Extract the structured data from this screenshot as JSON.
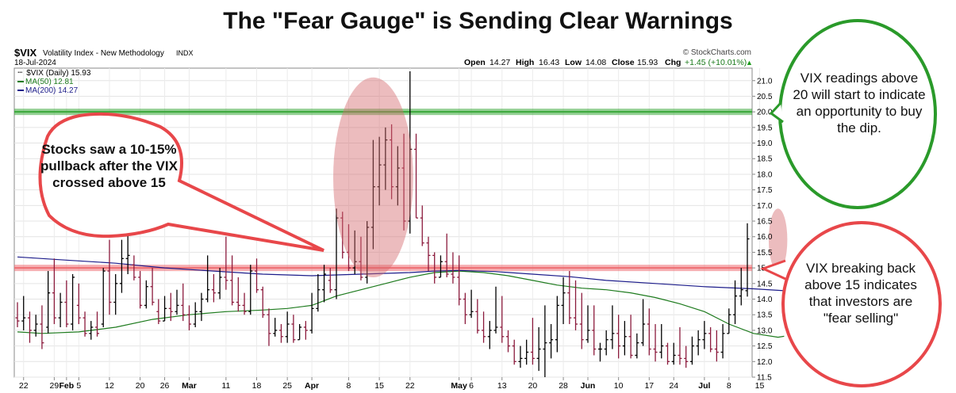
{
  "title": "The \"Fear Gauge\" is Sending Clear Warnings",
  "header": {
    "symbol": "$VIX",
    "name": "Volatility Index - New Methodology",
    "exchange": "INDX",
    "date": "18-Jul-2024",
    "watermark": "© StockCharts.com",
    "ohlc": {
      "open_label": "Open",
      "open": "14.27",
      "high_label": "High",
      "high": "16.43",
      "low_label": "Low",
      "low": "14.08",
      "close_label": "Close",
      "close": "15.93",
      "chg_label": "Chg",
      "chg": "+1.45 (+10.01%)"
    },
    "legend": {
      "price": "$VIX (Daily) 15.93",
      "ma50": "MA(50) 12.81",
      "ma200": "MA(200) 14.27"
    }
  },
  "annotations": {
    "left_bubble": "Stocks saw a 10-15% pullback after the VIX crossed above 15",
    "green_bubble": "VIX readings above 20 will start to indicate an opportunity to buy the dip.",
    "red_bubble": "VIX breaking back above 15 indicates that investors are \"fear selling\""
  },
  "colors": {
    "up_bar": "#000000",
    "down_bar": "#8b1a3c",
    "ma50": "#1e7b1e",
    "ma200": "#1c1c8a",
    "green_level": "#3aa83a",
    "red_level": "#ee6e72",
    "green_bubble_border": "#2a9a2a",
    "red_bubble_border": "#e8474a",
    "highlight_ellipse": "#d46a6e"
  },
  "chart_data": {
    "type": "ohlc",
    "title": "$VIX Volatility Index - New Methodology",
    "ylabel": "",
    "ylim": [
      11.5,
      21.4
    ],
    "yticks": [
      "11.5",
      "12.0",
      "12.5",
      "13.0",
      "13.5",
      "14.0",
      "14.5",
      "15.0",
      "15.5",
      "16.0",
      "16.5",
      "17.0",
      "17.5",
      "18.0",
      "18.5",
      "19.0",
      "19.5",
      "20.0",
      "20.5",
      "21.0"
    ],
    "x_ticks": [
      {
        "label": "22",
        "bold": false,
        "i": 1
      },
      {
        "label": "29",
        "bold": false,
        "i": 6
      },
      {
        "label": "Feb",
        "bold": true,
        "i": 8
      },
      {
        "label": "5",
        "bold": false,
        "i": 10
      },
      {
        "label": "12",
        "bold": false,
        "i": 15
      },
      {
        "label": "20",
        "bold": false,
        "i": 20
      },
      {
        "label": "26",
        "bold": false,
        "i": 24
      },
      {
        "label": "Mar",
        "bold": true,
        "i": 28
      },
      {
        "label": "11",
        "bold": false,
        "i": 34
      },
      {
        "label": "18",
        "bold": false,
        "i": 39
      },
      {
        "label": "25",
        "bold": false,
        "i": 44
      },
      {
        "label": "Apr",
        "bold": true,
        "i": 48
      },
      {
        "label": "8",
        "bold": false,
        "i": 54
      },
      {
        "label": "15",
        "bold": false,
        "i": 59
      },
      {
        "label": "22",
        "bold": false,
        "i": 64
      },
      {
        "label": "May",
        "bold": true,
        "i": 72
      },
      {
        "label": "6",
        "bold": false,
        "i": 74
      },
      {
        "label": "13",
        "bold": false,
        "i": 79
      },
      {
        "label": "20",
        "bold": false,
        "i": 84
      },
      {
        "label": "28",
        "bold": false,
        "i": 89
      },
      {
        "label": "Jun",
        "bold": true,
        "i": 93
      },
      {
        "label": "10",
        "bold": false,
        "i": 98
      },
      {
        "label": "17",
        "bold": false,
        "i": 103
      },
      {
        "label": "24",
        "bold": false,
        "i": 107
      },
      {
        "label": "Jul",
        "bold": true,
        "i": 112
      },
      {
        "label": "8",
        "bold": false,
        "i": 116
      },
      {
        "label": "15",
        "bold": false,
        "i": 121
      }
    ],
    "horizontal_levels": [
      {
        "value": 20.0,
        "color": "green"
      },
      {
        "value": 15.0,
        "color": "red"
      }
    ],
    "highlight_zones": [
      {
        "x_from_index": 52,
        "x_to_index": 64,
        "y_from": 14.8,
        "y_to": 21.0
      },
      {
        "x_from_index": 123,
        "x_to_index": 125,
        "y_from": 15.0,
        "y_to": 16.8
      }
    ],
    "series": [
      {
        "name": "$VIX (Daily)",
        "type": "ohlc",
        "bars": [
          [
            13.4,
            13.9,
            13.1,
            13.3
          ],
          [
            13.3,
            14.1,
            13.0,
            13.4
          ],
          [
            13.4,
            13.6,
            12.6,
            13.0
          ],
          [
            13.0,
            13.5,
            12.8,
            13.2
          ],
          [
            13.2,
            13.8,
            12.4,
            12.6
          ],
          [
            13.1,
            14.9,
            12.9,
            14.2
          ],
          [
            14.2,
            15.3,
            13.2,
            13.4
          ],
          [
            13.4,
            14.2,
            13.1,
            13.9
          ],
          [
            13.9,
            14.6,
            13.1,
            13.2
          ],
          [
            13.2,
            14.8,
            13.0,
            14.7
          ],
          [
            13.8,
            14.5,
            13.2,
            13.4
          ],
          [
            13.4,
            13.6,
            12.8,
            12.9
          ],
          [
            12.9,
            13.3,
            12.7,
            13.1
          ],
          [
            13.1,
            13.6,
            12.8,
            12.9
          ],
          [
            13.2,
            15.0,
            13.1,
            14.9
          ],
          [
            14.9,
            15.9,
            13.5,
            13.9
          ],
          [
            13.9,
            14.8,
            13.5,
            14.5
          ],
          [
            14.5,
            15.9,
            14.2,
            15.3
          ],
          [
            15.3,
            16.3,
            14.8,
            15.4
          ],
          [
            15.1,
            15.4,
            14.6,
            14.7
          ],
          [
            14.7,
            14.9,
            13.7,
            13.8
          ],
          [
            13.8,
            14.6,
            13.7,
            14.4
          ],
          [
            14.4,
            15.0,
            13.8,
            13.9
          ],
          [
            13.6,
            14.0,
            13.2,
            13.3
          ],
          [
            13.3,
            14.1,
            13.3,
            13.7
          ],
          [
            13.7,
            14.2,
            13.3,
            13.6
          ],
          [
            13.6,
            14.3,
            13.5,
            13.8
          ],
          [
            13.8,
            14.5,
            13.3,
            13.5
          ],
          [
            13.5,
            13.8,
            13.0,
            13.2
          ],
          [
            13.2,
            13.9,
            13.1,
            13.6
          ],
          [
            13.6,
            14.2,
            13.3,
            14.0
          ],
          [
            14.0,
            15.4,
            13.9,
            14.3
          ],
          [
            14.3,
            14.8,
            13.9,
            14.2
          ],
          [
            14.2,
            15.0,
            14.0,
            14.7
          ],
          [
            14.7,
            16.0,
            14.3,
            14.6
          ],
          [
            14.6,
            15.4,
            13.8,
            13.9
          ],
          [
            13.9,
            14.7,
            13.6,
            13.8
          ],
          [
            13.8,
            14.2,
            13.5,
            13.6
          ],
          [
            13.6,
            15.1,
            13.5,
            14.9
          ],
          [
            14.9,
            15.3,
            14.2,
            14.3
          ],
          [
            14.3,
            14.4,
            13.4,
            13.5
          ],
          [
            13.5,
            13.7,
            12.5,
            12.9
          ],
          [
            12.9,
            13.4,
            12.8,
            13.0
          ],
          [
            13.0,
            13.2,
            12.6,
            12.8
          ],
          [
            12.8,
            13.6,
            12.6,
            13.2
          ],
          [
            13.2,
            13.5,
            12.6,
            12.7
          ],
          [
            12.7,
            13.2,
            12.7,
            13.1
          ],
          [
            13.1,
            13.3,
            12.7,
            13.0
          ],
          [
            13.0,
            14.2,
            12.9,
            13.7
          ],
          [
            13.7,
            14.8,
            13.6,
            14.3
          ],
          [
            14.3,
            15.1,
            13.9,
            14.8
          ],
          [
            14.6,
            15.0,
            14.2,
            14.3
          ],
          [
            14.3,
            16.9,
            14.0,
            16.6
          ],
          [
            16.6,
            16.8,
            15.3,
            15.5
          ],
          [
            15.5,
            16.4,
            14.9,
            15.0
          ],
          [
            15.0,
            16.2,
            14.8,
            15.2
          ],
          [
            15.2,
            16.0,
            14.6,
            14.7
          ],
          [
            14.7,
            16.5,
            14.5,
            16.3
          ],
          [
            16.3,
            19.1,
            15.6,
            17.6
          ],
          [
            17.6,
            19.2,
            17.0,
            18.3
          ],
          [
            18.3,
            19.5,
            17.5,
            19.1
          ],
          [
            19.1,
            19.6,
            17.2,
            17.6
          ],
          [
            17.6,
            18.9,
            17.0,
            18.2
          ],
          [
            18.2,
            19.3,
            16.2,
            16.5
          ],
          [
            16.5,
            21.3,
            16.1,
            18.8
          ],
          [
            18.8,
            19.3,
            16.6,
            16.6
          ],
          [
            16.6,
            17.0,
            15.7,
            15.8
          ],
          [
            15.8,
            16.0,
            14.9,
            15.4
          ],
          [
            15.4,
            15.5,
            14.5,
            14.7
          ],
          [
            14.7,
            15.4,
            14.7,
            15.2
          ],
          [
            15.2,
            16.1,
            14.7,
            14.8
          ],
          [
            14.8,
            15.5,
            14.5,
            14.7
          ],
          [
            14.7,
            15.4,
            13.8,
            14.0
          ],
          [
            14.0,
            14.2,
            13.2,
            13.5
          ],
          [
            13.5,
            14.3,
            13.4,
            13.6
          ],
          [
            13.6,
            14.0,
            12.9,
            13.0
          ],
          [
            13.0,
            13.6,
            12.6,
            12.8
          ],
          [
            12.8,
            13.3,
            12.4,
            13.0
          ],
          [
            13.0,
            14.4,
            12.9,
            13.1
          ],
          [
            13.1,
            14.1,
            12.6,
            12.8
          ],
          [
            12.8,
            13.0,
            12.3,
            12.5
          ],
          [
            12.5,
            12.7,
            11.9,
            12.0
          ],
          [
            12.0,
            12.5,
            11.8,
            12.1
          ],
          [
            12.1,
            12.7,
            11.9,
            12.3
          ],
          [
            12.3,
            13.4,
            11.9,
            12.1
          ],
          [
            12.1,
            13.1,
            11.7,
            12.4
          ],
          [
            12.4,
            13.8,
            11.5,
            12.6
          ],
          [
            12.6,
            13.2,
            12.1,
            12.7
          ],
          [
            12.7,
            14.1,
            12.3,
            13.8
          ],
          [
            13.8,
            14.7,
            13.2,
            14.2
          ],
          [
            14.2,
            14.9,
            13.2,
            13.4
          ],
          [
            13.4,
            14.6,
            13.0,
            13.2
          ],
          [
            13.2,
            14.2,
            12.4,
            12.7
          ],
          [
            12.7,
            13.8,
            12.6,
            13.0
          ],
          [
            13.0,
            13.8,
            12.2,
            12.4
          ],
          [
            12.4,
            12.6,
            12.0,
            12.4
          ],
          [
            12.4,
            13.0,
            12.2,
            12.7
          ],
          [
            12.7,
            13.8,
            12.4,
            12.9
          ],
          [
            12.9,
            13.5,
            12.1,
            12.5
          ],
          [
            12.5,
            13.3,
            12.2,
            12.8
          ],
          [
            12.8,
            13.5,
            12.1,
            12.2
          ],
          [
            12.2,
            12.9,
            12.1,
            12.6
          ],
          [
            12.6,
            14.0,
            12.5,
            13.2
          ],
          [
            13.2,
            13.7,
            12.2,
            12.4
          ],
          [
            12.4,
            13.2,
            12.0,
            12.3
          ],
          [
            12.3,
            13.2,
            12.1,
            12.5
          ],
          [
            12.5,
            12.6,
            11.9,
            12.0
          ],
          [
            12.0,
            12.6,
            11.9,
            12.2
          ],
          [
            12.2,
            13.1,
            11.9,
            12.1
          ],
          [
            12.1,
            12.5,
            11.8,
            12.0
          ],
          [
            12.0,
            12.8,
            11.9,
            12.5
          ],
          [
            12.5,
            13.0,
            12.2,
            12.7
          ],
          [
            12.7,
            13.3,
            12.4,
            12.9
          ],
          [
            12.9,
            13.1,
            12.3,
            12.4
          ],
          [
            12.4,
            13.0,
            12.0,
            12.3
          ],
          [
            12.3,
            13.2,
            12.1,
            12.9
          ],
          [
            12.9,
            13.7,
            12.9,
            13.5
          ],
          [
            13.5,
            14.6,
            13.2,
            14.1
          ],
          [
            14.1,
            15.0,
            13.8,
            14.3
          ],
          [
            14.27,
            16.43,
            14.08,
            15.93
          ]
        ]
      },
      {
        "name": "MA(50)",
        "type": "line",
        "points": [
          [
            0,
            12.95
          ],
          [
            4,
            12.9
          ],
          [
            10,
            12.95
          ],
          [
            16,
            13.1
          ],
          [
            22,
            13.35
          ],
          [
            28,
            13.5
          ],
          [
            34,
            13.6
          ],
          [
            40,
            13.65
          ],
          [
            44,
            13.7
          ],
          [
            48,
            13.8
          ],
          [
            52,
            14.1
          ],
          [
            56,
            14.3
          ],
          [
            60,
            14.5
          ],
          [
            64,
            14.7
          ],
          [
            68,
            14.85
          ],
          [
            72,
            14.9
          ],
          [
            76,
            14.85
          ],
          [
            80,
            14.75
          ],
          [
            84,
            14.6
          ],
          [
            88,
            14.45
          ],
          [
            92,
            14.35
          ],
          [
            96,
            14.3
          ],
          [
            100,
            14.2
          ],
          [
            104,
            14.05
          ],
          [
            108,
            13.85
          ],
          [
            112,
            13.6
          ],
          [
            116,
            13.2
          ],
          [
            120,
            12.9
          ],
          [
            124,
            12.78
          ],
          [
            125,
            12.81
          ]
        ]
      },
      {
        "name": "MA(200)",
        "type": "line",
        "points": [
          [
            0,
            15.35
          ],
          [
            8,
            15.25
          ],
          [
            16,
            15.15
          ],
          [
            24,
            15.0
          ],
          [
            32,
            14.9
          ],
          [
            40,
            14.8
          ],
          [
            48,
            14.75
          ],
          [
            56,
            14.8
          ],
          [
            64,
            14.85
          ],
          [
            68,
            14.9
          ],
          [
            72,
            14.92
          ],
          [
            78,
            14.88
          ],
          [
            84,
            14.8
          ],
          [
            90,
            14.72
          ],
          [
            96,
            14.6
          ],
          [
            104,
            14.5
          ],
          [
            112,
            14.4
          ],
          [
            120,
            14.33
          ],
          [
            125,
            14.27
          ]
        ]
      }
    ]
  }
}
